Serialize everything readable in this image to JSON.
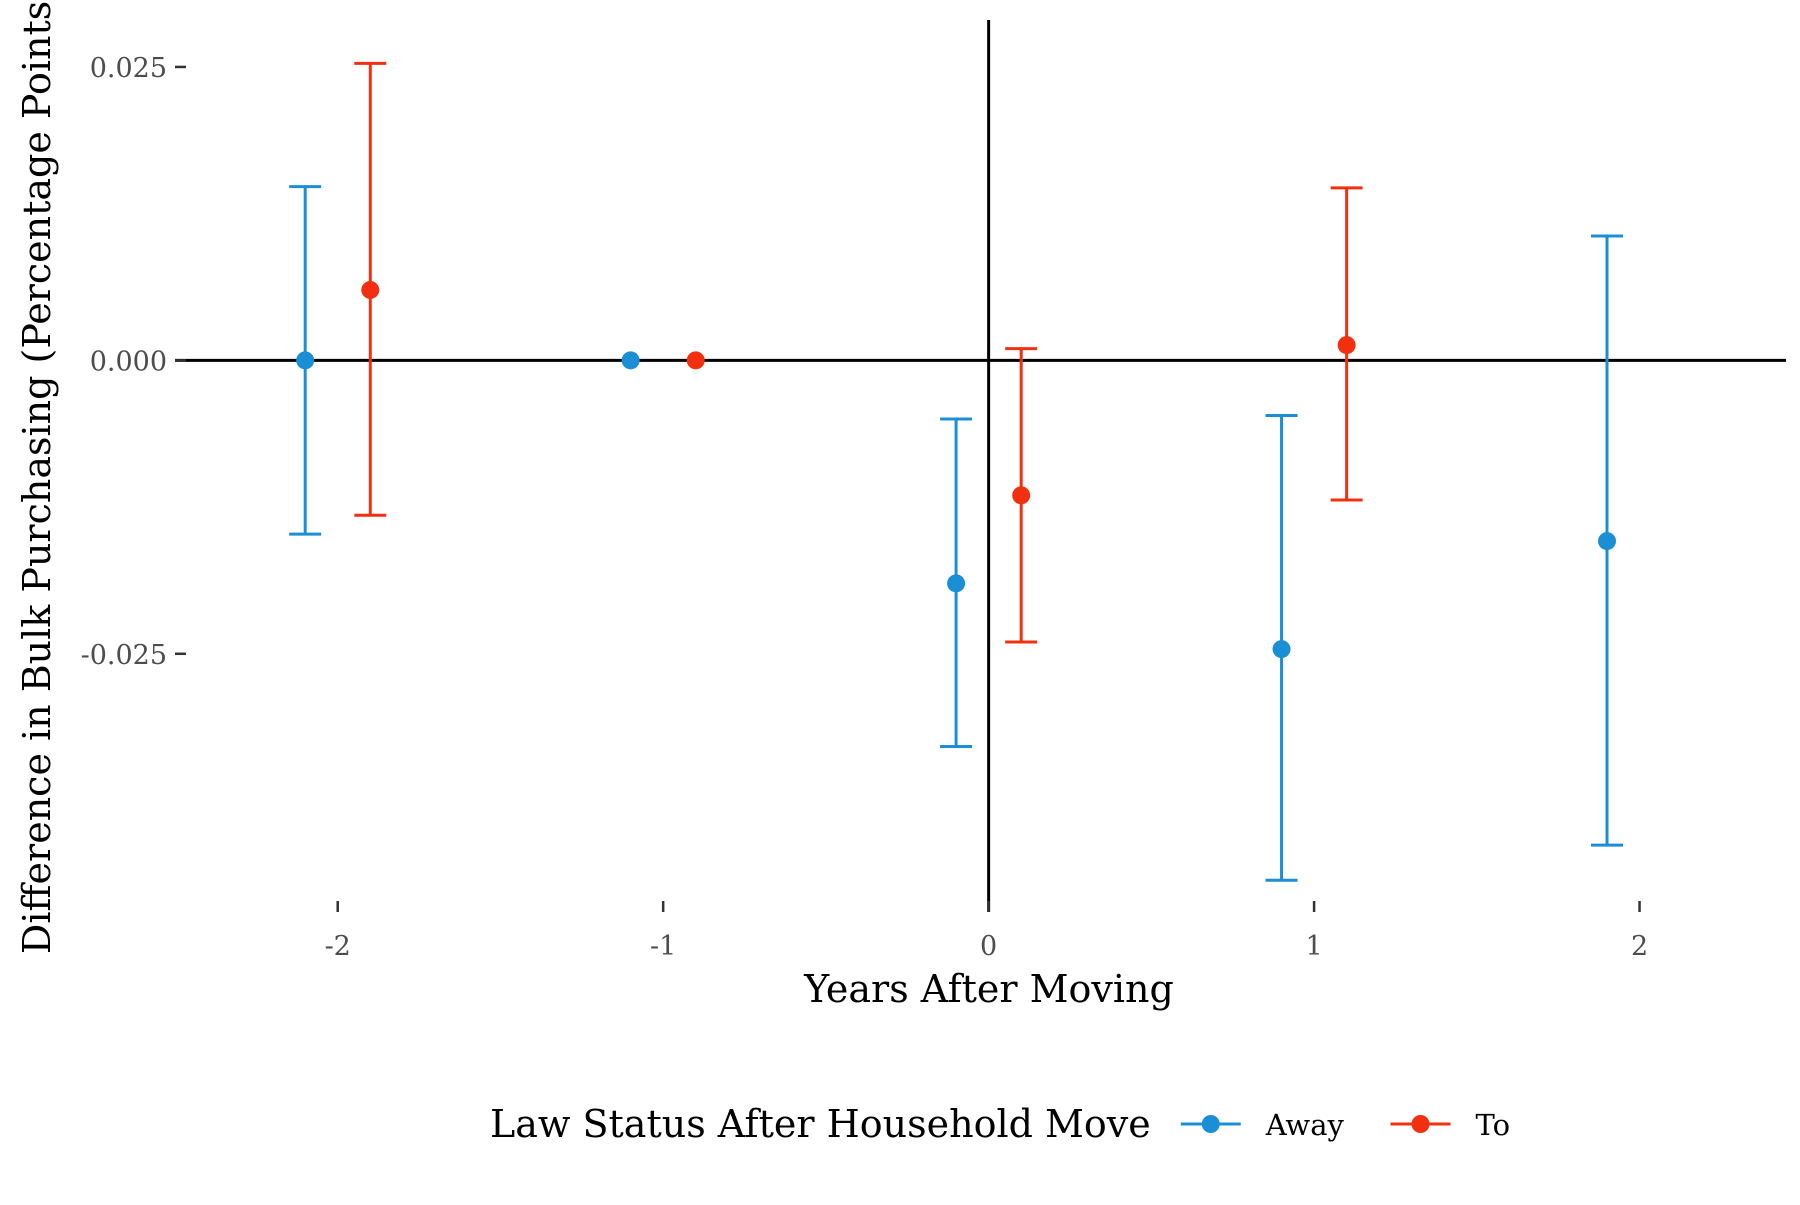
{
  "chart_data": {
    "type": "scatter",
    "subtype": "point-with-errorbars",
    "title": "",
    "xlabel": "Years After Moving",
    "ylabel": "Difference in Bulk Purchasing (Percentage Points)",
    "xlim": [
      -2.5,
      2.45
    ],
    "ylim": [
      -0.047,
      0.029
    ],
    "x_ticks": [
      -2,
      -1,
      0,
      1,
      2
    ],
    "x_tick_labels": [
      "-2",
      "-1",
      "0",
      "1",
      "2"
    ],
    "y_ticks": [
      0.025,
      0.0,
      -0.025
    ],
    "y_tick_labels": [
      "0.025",
      "0.000",
      "-0.025"
    ],
    "reference_lines": {
      "horizontal_y": 0,
      "vertical_x": 0
    },
    "grid": false,
    "legend": {
      "title": "Law Status After Household Move",
      "position": "bottom"
    },
    "series": [
      {
        "name": "Away",
        "color": "#1b8fd6",
        "points": [
          {
            "x": -2.1,
            "y": 0.0,
            "ymin": -0.0148,
            "ymax": 0.0148
          },
          {
            "x": -1.1,
            "y": 0.0,
            "ymin": 0.0,
            "ymax": 0.0
          },
          {
            "x": -0.1,
            "y": -0.019,
            "ymin": -0.0329,
            "ymax": -0.005
          },
          {
            "x": 0.9,
            "y": -0.0246,
            "ymin": -0.0443,
            "ymax": -0.0047
          },
          {
            "x": 1.9,
            "y": -0.0154,
            "ymin": -0.0413,
            "ymax": 0.0106
          }
        ]
      },
      {
        "name": "To",
        "color": "#f2300f",
        "points": [
          {
            "x": -1.9,
            "y": 0.006,
            "ymin": -0.0132,
            "ymax": 0.0253
          },
          {
            "x": -0.9,
            "y": 0.0,
            "ymin": 0.0,
            "ymax": 0.0
          },
          {
            "x": 0.1,
            "y": -0.0115,
            "ymin": -0.024,
            "ymax": 0.001
          },
          {
            "x": 1.1,
            "y": 0.0013,
            "ymin": -0.0119,
            "ymax": 0.0147
          }
        ]
      }
    ]
  }
}
